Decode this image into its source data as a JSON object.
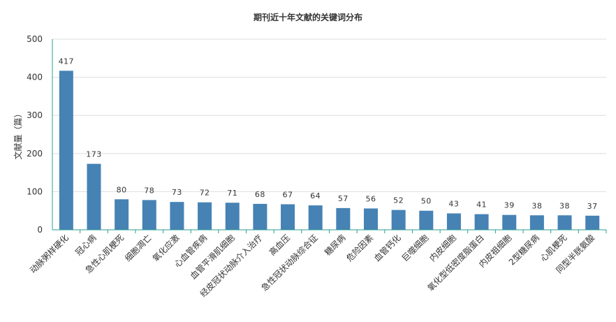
{
  "chart_data": {
    "type": "bar",
    "title": "期刊近十年文献的关键词分布",
    "ylabel": "文献量（篇）",
    "xlabel": "",
    "ylim": [
      0,
      500
    ],
    "yticks": [
      0,
      100,
      200,
      300,
      400,
      500
    ],
    "grid": true,
    "bar_color": "#4682b4",
    "axis_color": "#2a9d8f",
    "categories": [
      "动脉粥样硬化",
      "冠心病",
      "急性心肌梗死",
      "细胞凋亡",
      "氧化应激",
      "心血管疾病",
      "血管平滑肌细胞",
      "经皮冠状动脉介入治疗",
      "高血压",
      "急性冠状动脉综合征",
      "糖尿病",
      "危险因素",
      "血管钙化",
      "巨噬细胞",
      "内皮细胞",
      "氧化型低密度脂蛋白",
      "内皮祖细胞",
      "2型糖尿病",
      "心肌梗死",
      "同型半胱氨酸"
    ],
    "values": [
      417,
      173,
      80,
      78,
      73,
      72,
      71,
      68,
      67,
      64,
      57,
      56,
      52,
      50,
      43,
      41,
      39,
      38,
      38,
      37
    ]
  }
}
